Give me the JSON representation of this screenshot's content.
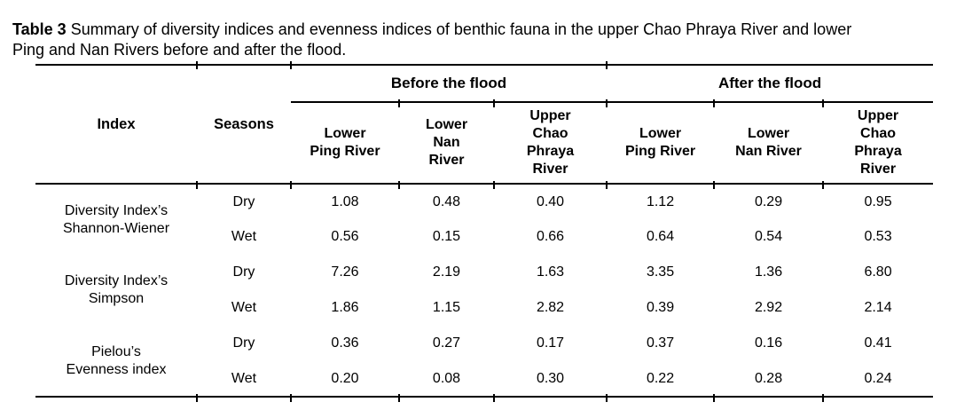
{
  "caption": {
    "prefix": "Table 3",
    "line1": "Summary of diversity indices and evenness indices of benthic fauna in the upper Chao Phraya River and lower",
    "line2": "Ping and Nan Rivers before and after the flood."
  },
  "table": {
    "index_header": "Index",
    "seasons_header": "Seasons",
    "groups": [
      {
        "label": "Before the flood",
        "columns": [
          "Lower\nPing River",
          "Lower\nNan\nRiver",
          "Upper\nChao\nPhraya\nRiver"
        ]
      },
      {
        "label": "After the flood",
        "columns": [
          "Lower\nPing River",
          "Lower\nNan River",
          "Upper\nChao\nPhraya\nRiver"
        ]
      }
    ],
    "rows": [
      {
        "index": "Diversity Index’s\nShannon-Wiener",
        "seasons": [
          {
            "season": "Dry",
            "values": [
              "1.08",
              "0.48",
              "0.40",
              "1.12",
              "0.29",
              "0.95"
            ]
          },
          {
            "season": "Wet",
            "values": [
              "0.56",
              "0.15",
              "0.66",
              "0.64",
              "0.54",
              "0.53"
            ]
          }
        ]
      },
      {
        "index": "Diversity Index’s\nSimpson",
        "seasons": [
          {
            "season": "Dry",
            "values": [
              "7.26",
              "2.19",
              "1.63",
              "3.35",
              "1.36",
              "6.80"
            ]
          },
          {
            "season": "Wet",
            "values": [
              "1.86",
              "1.15",
              "2.82",
              "0.39",
              "2.92",
              "2.14"
            ]
          }
        ]
      },
      {
        "index": "Pielou’s\nEvenness index",
        "seasons": [
          {
            "season": "Dry",
            "values": [
              "0.36",
              "0.27",
              "0.17",
              "0.37",
              "0.16",
              "0.41"
            ]
          },
          {
            "season": "Wet",
            "values": [
              "0.20",
              "0.08",
              "0.30",
              "0.22",
              "0.28",
              "0.24"
            ]
          }
        ]
      }
    ]
  }
}
